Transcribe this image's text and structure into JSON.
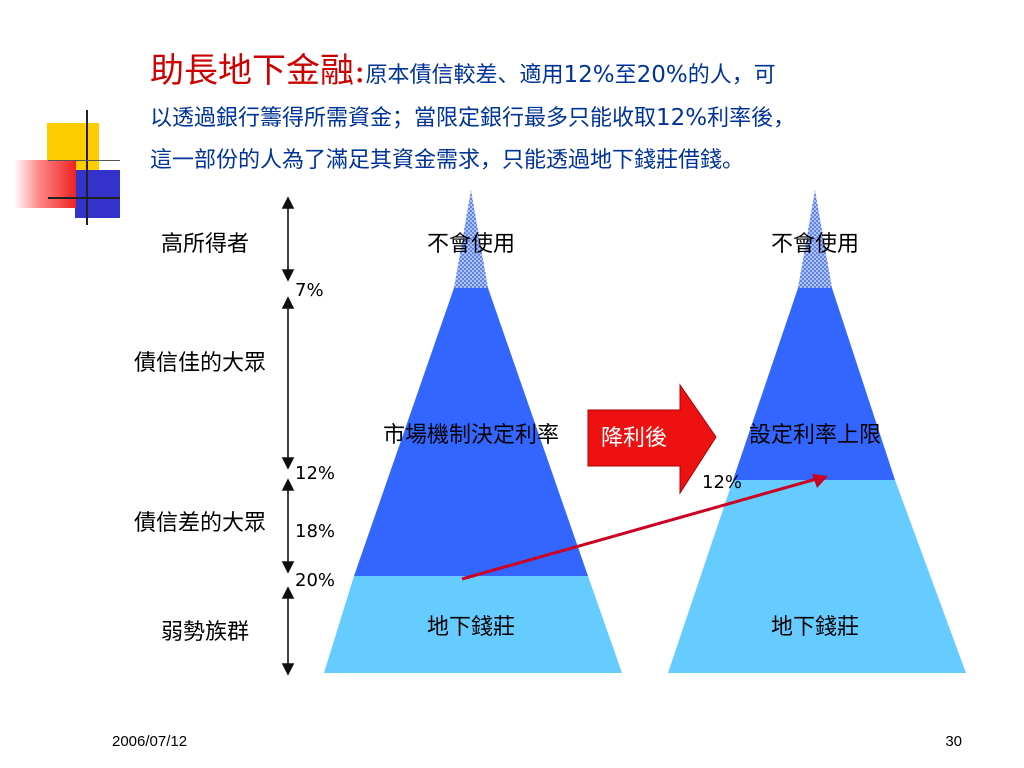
{
  "title": {
    "heading": "助長地下金融:",
    "line1_a": "原本債信較差、適用",
    "line1_b": "12%",
    "line1_c": "至",
    "line1_d": "20%",
    "line1_e": "的人，可",
    "line2_a": "以透過銀行籌得所需資金；當限定銀行最多只能收取",
    "line2_b": "12%",
    "line2_c": "利率後，",
    "line3": "這一部份的人為了滿足其資金需求，只能透過地下錢莊借錢。"
  },
  "left_labels": {
    "group1": "高所得者",
    "group2": "債信佳的大眾",
    "group3": "債信差的大眾",
    "group4": "弱勢族群"
  },
  "percent_marks": {
    "p7": "7%",
    "p12": "12%",
    "p18": "18%",
    "p20": "20%"
  },
  "pyramid_left": {
    "top": "不會使用",
    "middle": "市場機制決定利率",
    "bottom": "地下錢莊"
  },
  "pyramid_right": {
    "top": "不會使用",
    "middle": "設定利率上限",
    "bottom": "地下錢莊",
    "cap_mark": "12%"
  },
  "arrow_label": "降利後",
  "colors": {
    "title_red": "#cc0000",
    "title_blue": "#003399",
    "pyramid_dark_blue": "#3366ff",
    "pyramid_light_blue": "#66ccff",
    "pyramid_top": "#99bbff",
    "arrow_red": "#ee1111",
    "shift_line": "#cc0022"
  },
  "footer": {
    "date": "2006/07/12",
    "page": "30"
  }
}
